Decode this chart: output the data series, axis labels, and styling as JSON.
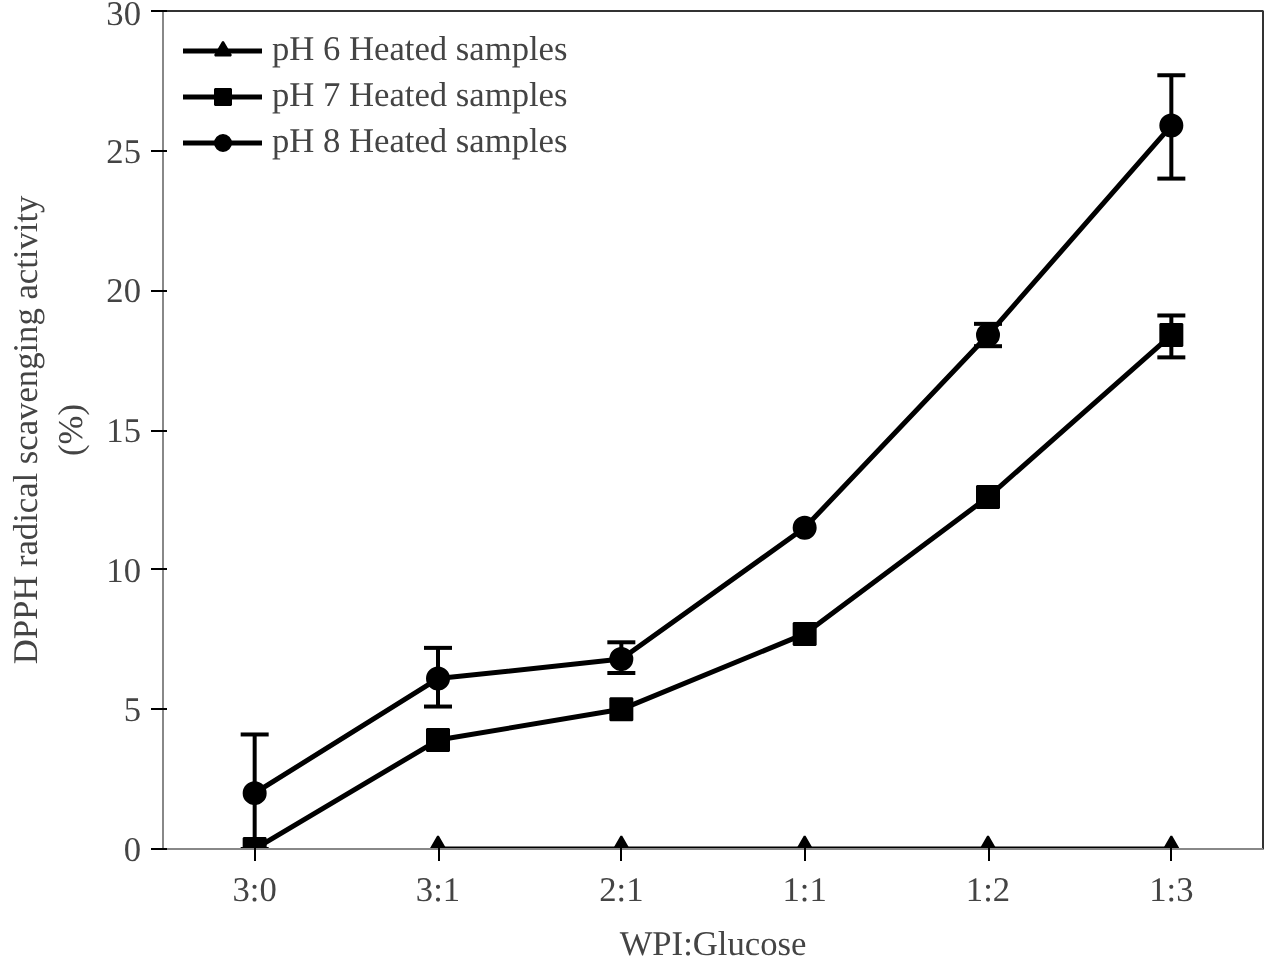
{
  "chart_data": {
    "type": "line",
    "xlabel": "WPI:Glucose",
    "ylabel": "DPPH radical scavenging activity\n(%)",
    "categories": [
      "3:0",
      "3:1",
      "2:1",
      "1:1",
      "1:2",
      "1:3"
    ],
    "ylim": [
      0,
      30
    ],
    "yticks": [
      0,
      5,
      10,
      15,
      20,
      25,
      30
    ],
    "grid": false,
    "legend": "top left",
    "series": [
      {
        "name": "pH 6 Heated samples",
        "color": "#000000",
        "marker": "triangle",
        "values": [
          null,
          0,
          0,
          0,
          0,
          0
        ]
      },
      {
        "name": "pH 7 Heated samples",
        "color": "#000000",
        "marker": "square",
        "values": [
          0,
          3.9,
          5.0,
          7.7,
          12.6,
          18.4
        ],
        "errors": [
          null,
          null,
          null,
          null,
          null,
          [
            17.6,
            19.1
          ]
        ]
      },
      {
        "name": "pH 8 Heated samples",
        "color": "#000000",
        "marker": "circle",
        "values": [
          2.0,
          6.1,
          6.8,
          11.5,
          18.4,
          25.9
        ],
        "errors": [
          [
            0,
            4.1
          ],
          [
            5.1,
            7.2
          ],
          [
            6.3,
            7.4
          ],
          null,
          [
            18.0,
            18.8
          ],
          [
            24.0,
            27.7
          ]
        ]
      }
    ]
  }
}
